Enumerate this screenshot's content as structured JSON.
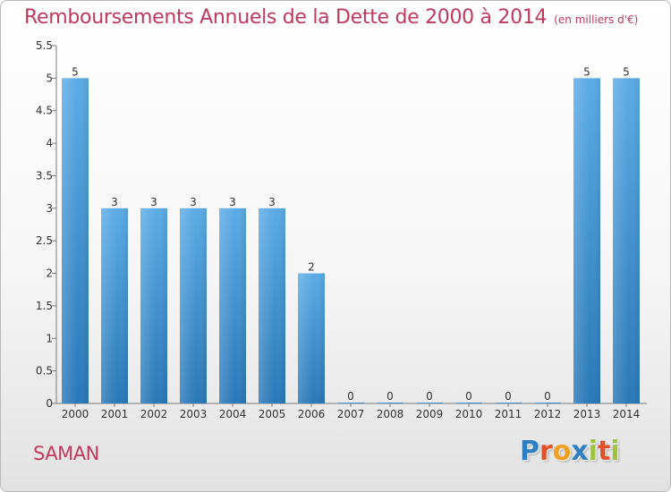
{
  "header": {
    "title": "Remboursements Annuels de la Dette de 2000 à 2014",
    "unit": "(en milliers d'€)"
  },
  "footer": {
    "commune": "SAMAN",
    "logo_text": "Proxiti",
    "logo_colors": [
      "#2e7fc1",
      "#e0502a",
      "#f0a01e",
      "#2e7fc1",
      "#9cc43c",
      "#e0502a",
      "#9cc43c"
    ]
  },
  "chart_data": {
    "type": "bar",
    "title": "Remboursements Annuels de la Dette de 2000 à 2014",
    "subtitle": "(en milliers d'€)",
    "xlabel": "",
    "ylabel": "",
    "categories": [
      "2000",
      "2001",
      "2002",
      "2003",
      "2004",
      "2005",
      "2006",
      "2007",
      "2008",
      "2009",
      "2010",
      "2011",
      "2012",
      "2013",
      "2014"
    ],
    "values": [
      5,
      3,
      3,
      3,
      3,
      3,
      2,
      0,
      0,
      0,
      0,
      0,
      0,
      5,
      5
    ],
    "data_labels": [
      "5",
      "3",
      "3",
      "3",
      "3",
      "3",
      "2",
      "0",
      "0",
      "0",
      "0",
      "0",
      "0",
      "5",
      "5"
    ],
    "ylim": [
      0,
      5.5
    ],
    "yticks": [
      0,
      0.5,
      1,
      1.5,
      2,
      2.5,
      3,
      3.5,
      4,
      4.5,
      5,
      5.5
    ],
    "ytick_labels": [
      "0",
      "0.5",
      "1",
      "1.5",
      "2",
      "2.5",
      "3",
      "3.5",
      "4",
      "4.5",
      "5",
      "5.5"
    ],
    "grid": false,
    "legend": "none",
    "bar_color_top": "#5aabe6",
    "bar_color_bottom": "#2878b8",
    "axis_color": "#7a7a7a",
    "text_color": "#333333"
  }
}
